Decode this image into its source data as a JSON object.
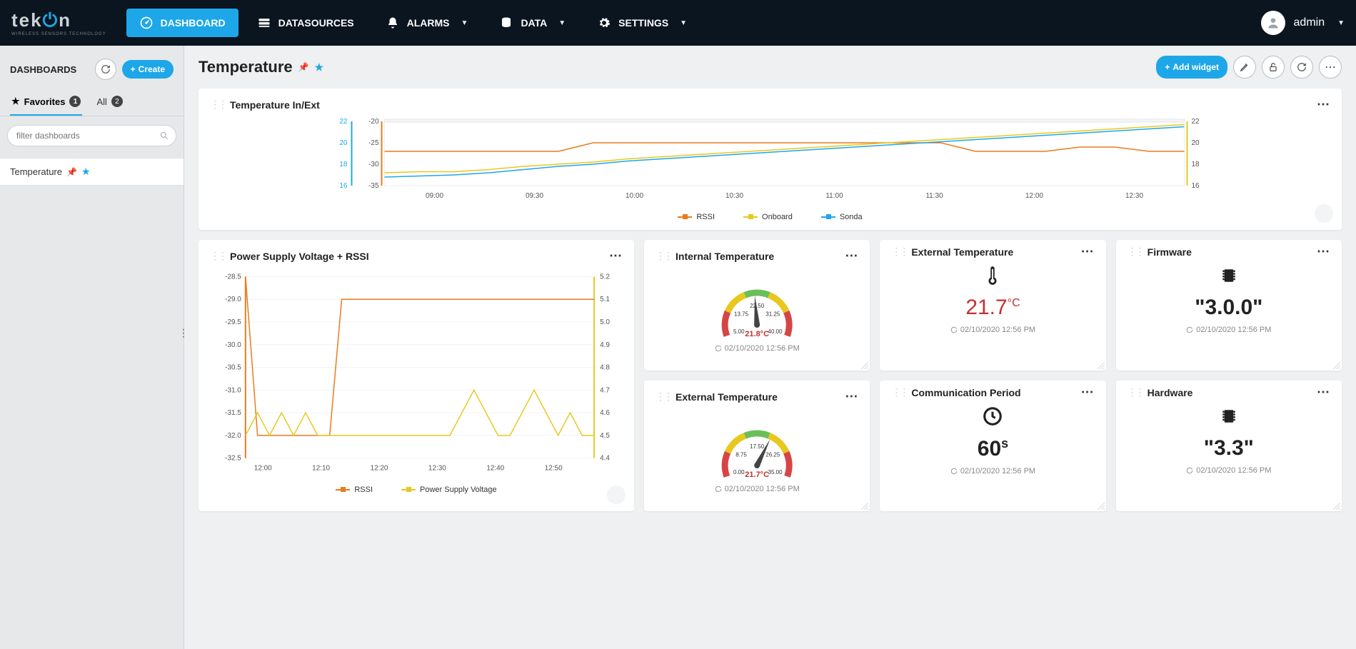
{
  "brand": {
    "name": "tekon",
    "tagline": "WIRELESS SENSORS TECHNOLOGY"
  },
  "nav": {
    "dashboard": "DASHBOARD",
    "datasources": "DATASOURCES",
    "alarms": "ALARMS",
    "data": "DATA",
    "settings": "SETTINGS"
  },
  "user": {
    "name": "admin"
  },
  "sidebar": {
    "title": "DASHBOARDS",
    "create": "Create",
    "tabs": {
      "fav": "Favorites",
      "fav_count": "1",
      "all": "All",
      "all_count": "2"
    },
    "filter_placeholder": "filter dashboards",
    "items": [
      {
        "label": "Temperature"
      }
    ]
  },
  "page": {
    "title": "Temperature",
    "add_widget": "Add widget"
  },
  "chart1": {
    "title": "Temperature In/Ext",
    "x_labels": [
      "09:00",
      "09:30",
      "10:00",
      "10:30",
      "11:00",
      "11:30",
      "12:00",
      "12:30"
    ],
    "yL_ticks": [
      22,
      20,
      18,
      16
    ],
    "yL2_ticks": [
      -20,
      -25,
      -30,
      -35
    ],
    "yR_ticks": [
      22,
      20,
      18,
      16
    ],
    "series": [
      {
        "name": "RSSI",
        "color": "#e87c1e",
        "marker": "square",
        "y": [
          -27,
          -27,
          -27,
          -27,
          -27,
          -27,
          -25,
          -25,
          -25,
          -25,
          -25,
          -25,
          -25,
          -25,
          -25,
          -25,
          -25,
          -27,
          -27,
          -27,
          -26,
          -26,
          -27,
          -27
        ],
        "axis": "L2"
      },
      {
        "name": "Onboard",
        "color": "#e8c81e",
        "marker": "square",
        "y": [
          17.2,
          17.3,
          17.3,
          17.5,
          17.8,
          18.0,
          18.2,
          18.5,
          18.7,
          18.9,
          19.1,
          19.3,
          19.5,
          19.7,
          19.9,
          20.1,
          20.3,
          20.5,
          20.7,
          20.9,
          21.1,
          21.3,
          21.5,
          21.7
        ],
        "axis": "R"
      },
      {
        "name": "Sonda",
        "color": "#1ea7e8",
        "marker": "triangle",
        "y": [
          16.8,
          16.9,
          17.0,
          17.2,
          17.5,
          17.8,
          18.0,
          18.3,
          18.5,
          18.7,
          18.9,
          19.1,
          19.3,
          19.5,
          19.7,
          19.9,
          20.1,
          20.3,
          20.5,
          20.7,
          20.9,
          21.1,
          21.3,
          21.5
        ],
        "axis": "R"
      }
    ],
    "yL_range": [
      16,
      22
    ],
    "yL2_range": [
      -35,
      -20
    ],
    "yR_range": [
      16,
      22
    ],
    "bg": "#ffffff",
    "grid": "#f0f2f4",
    "axis_color": "#888"
  },
  "chart2": {
    "title": "Power Supply Voltage + RSSI",
    "x_labels": [
      "12:00",
      "12:10",
      "12:20",
      "12:30",
      "12:40",
      "12:50"
    ],
    "yL_ticks": [
      -28.5,
      -29.0,
      -29.5,
      -30.0,
      -30.5,
      -31.0,
      -31.5,
      -32.0,
      -32.5
    ],
    "yR_ticks": [
      5.2,
      5.1,
      5.0,
      4.9,
      4.8,
      4.7,
      4.6,
      4.5,
      4.4
    ],
    "series": [
      {
        "name": "RSSI",
        "color": "#e87c1e",
        "marker": "square",
        "y": [
          -28.5,
          -32,
          -32,
          -32,
          -32,
          -32,
          -32,
          -32,
          -29,
          -29,
          -29,
          -29,
          -29,
          -29,
          -29,
          -29,
          -29,
          -29,
          -29,
          -29,
          -29,
          -29,
          -29,
          -29,
          -29,
          -29,
          -29,
          -29,
          -29,
          -29
        ],
        "axis": "L"
      },
      {
        "name": "Power Supply Voltage",
        "color": "#e8c81e",
        "marker": "square",
        "y": [
          4.5,
          4.6,
          4.5,
          4.6,
          4.5,
          4.6,
          4.5,
          4.5,
          4.5,
          4.5,
          4.5,
          4.5,
          4.5,
          4.5,
          4.5,
          4.5,
          4.5,
          4.5,
          4.6,
          4.7,
          4.6,
          4.5,
          4.5,
          4.6,
          4.7,
          4.6,
          4.5,
          4.6,
          4.5,
          4.5
        ],
        "axis": "R"
      }
    ],
    "yL_range": [
      -32.5,
      -28.5
    ],
    "yR_range": [
      4.4,
      5.2
    ]
  },
  "gauge1": {
    "title": "Internal Temperature",
    "min": 5.0,
    "max": 40.0,
    "value": 21.8,
    "unit": "°C",
    "ticks": [
      "5.00",
      "13.75",
      "22.50",
      "31.25",
      "40.00"
    ],
    "ts": "02/10/2020 12:56 PM",
    "arc_colors": [
      "#d64545",
      "#e8c81e",
      "#6bbf59",
      "#e8c81e",
      "#d64545"
    ]
  },
  "gauge2": {
    "title": "External Temperature",
    "min": 0.0,
    "max": 35.0,
    "value": 21.7,
    "unit": "°C",
    "ticks": [
      "0.00",
      "8.75",
      "17.50",
      "26.25",
      "35.00"
    ],
    "ts": "02/10/2020 12:56 PM",
    "arc_colors": [
      "#d64545",
      "#e8c81e",
      "#6bbf59",
      "#e8c81e",
      "#d64545"
    ]
  },
  "card_ext": {
    "title": "External Temperature",
    "value": "21.7",
    "unit": "°C",
    "ts": "02/10/2020 12:56 PM",
    "color": "#c53030"
  },
  "card_comm": {
    "title": "Communication Period",
    "value": "60",
    "unit": "s",
    "ts": "02/10/2020 12:56 PM"
  },
  "card_fw": {
    "title": "Firmware",
    "value": "\"3.0.0\"",
    "ts": "02/10/2020 12:56 PM"
  },
  "card_hw": {
    "title": "Hardware",
    "value": "\"3.3\"",
    "ts": "02/10/2020 12:56 PM"
  }
}
